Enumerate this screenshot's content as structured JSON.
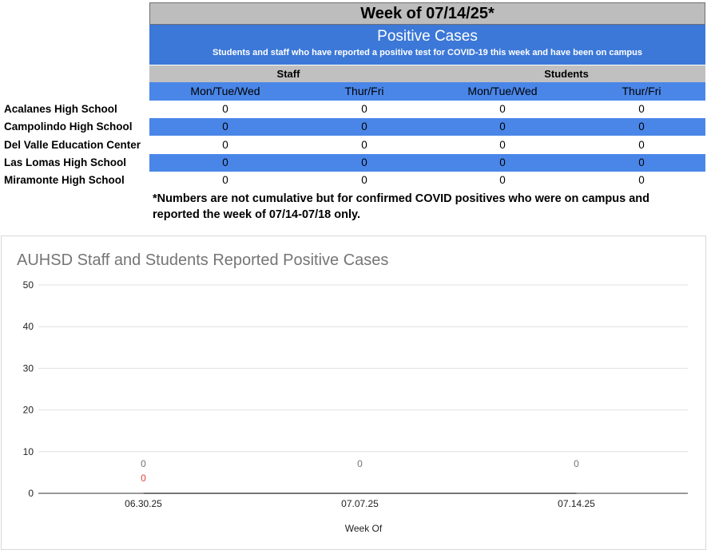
{
  "header": {
    "week_title": "Week of 07/14/25*",
    "section_title": "Positive Cases",
    "section_subtitle": "Students and staff who have reported a positive test for COVID-19 this week and have been on campus"
  },
  "groups": [
    "Staff",
    "Students"
  ],
  "columns": [
    "Mon/Tue/Wed",
    "Thur/Fri",
    "Mon/Tue/Wed",
    "Thur/Fri"
  ],
  "rows": [
    {
      "school": "Acalanes High School",
      "values": [
        "0",
        "0",
        "0",
        "0"
      ]
    },
    {
      "school": "Campolindo High School",
      "values": [
        "0",
        "0",
        "0",
        "0"
      ]
    },
    {
      "school": "Del Valle Education Center",
      "values": [
        "0",
        "0",
        "0",
        "0"
      ]
    },
    {
      "school": "Las Lomas High School",
      "values": [
        "0",
        "0",
        "0",
        "0"
      ]
    },
    {
      "school": "Miramonte High School",
      "values": [
        "0",
        "0",
        "0",
        "0"
      ]
    }
  ],
  "footnote": "*Numbers are not cumulative but for confirmed COVID positives who were on campus and reported the week of 07/14-07/18 only.",
  "colors": {
    "title_bar": "#bdbdbd",
    "header_blue": "#3c78d8",
    "row_blue": "#4a86e8",
    "series_gray": "#757575",
    "series_red": "#db4437"
  },
  "chart_data": {
    "type": "line",
    "title": "AUHSD Staff and Students Reported Positive Cases",
    "xlabel": "Week Of",
    "ylabel": "",
    "ylim": [
      0,
      50
    ],
    "yticks": [
      0,
      10,
      20,
      30,
      40,
      50
    ],
    "categories": [
      "06.30.25",
      "07.07.25",
      "07.14.25"
    ],
    "grid": true,
    "series": [
      {
        "values": [
          0,
          0,
          0
        ],
        "labels": [
          "0",
          "0",
          "0"
        ],
        "color": "#757575"
      },
      {
        "values": [
          0,
          null,
          null
        ],
        "labels": [
          "0",
          "",
          ""
        ],
        "color": "#db4437"
      }
    ]
  }
}
